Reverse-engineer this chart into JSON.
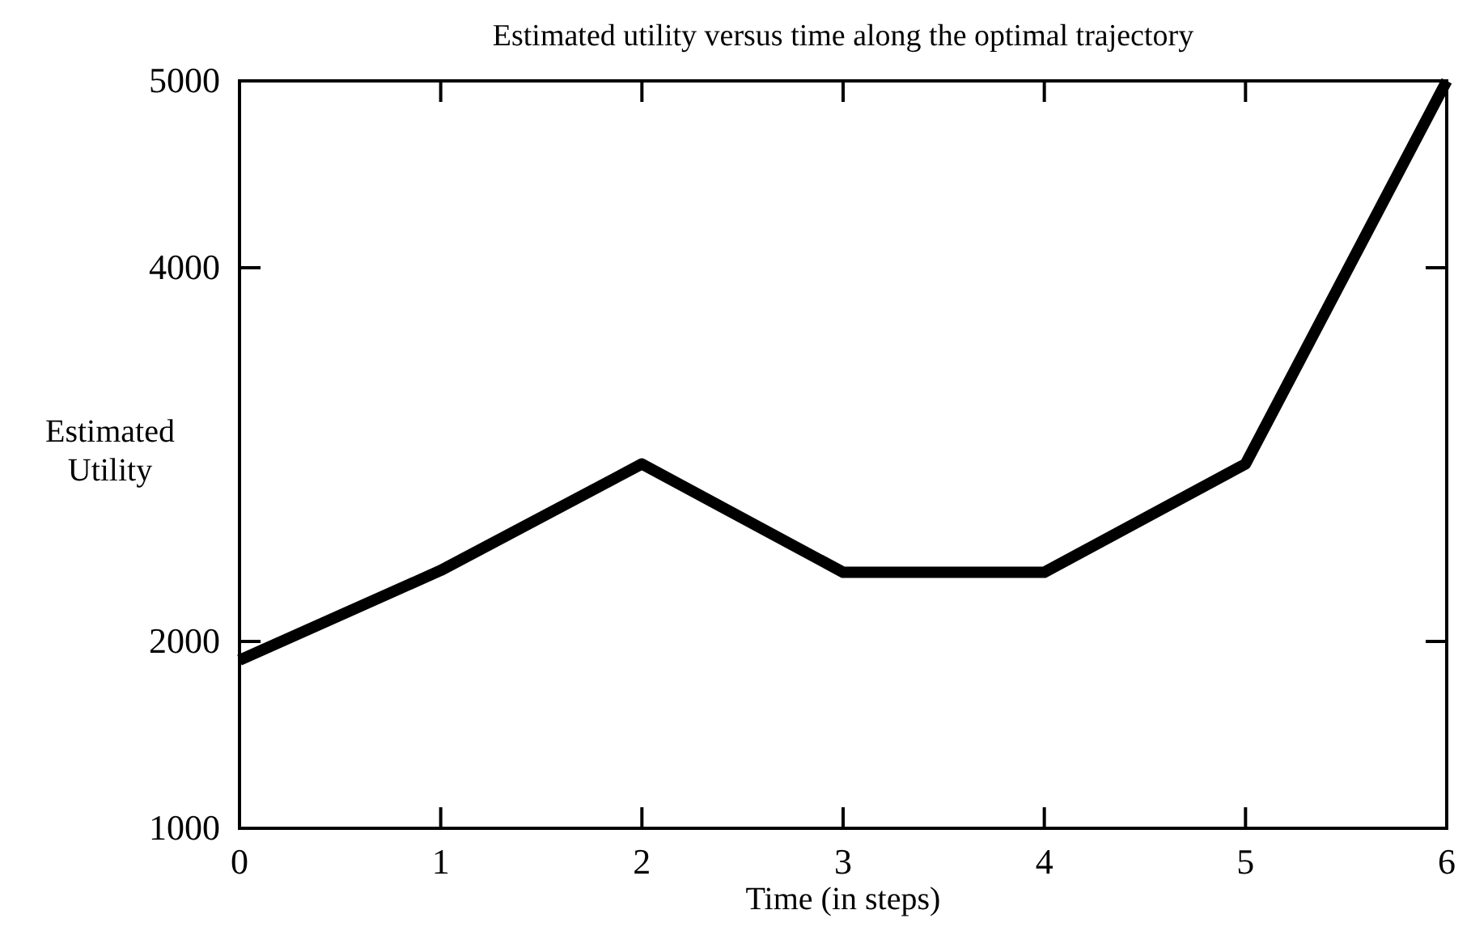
{
  "chart_data": {
    "type": "line",
    "title": "Estimated utility versus time along the optimal trajectory",
    "xlabel": "Time (in steps)",
    "ylabel": "Estimated Utility",
    "x": [
      0,
      1,
      2,
      3,
      4,
      5,
      6
    ],
    "series": [
      {
        "color": "#000000",
        "values": [
          1900,
          2380,
          2950,
          2370,
          2370,
          2950,
          5000
        ]
      }
    ],
    "xlim": [
      0,
      6
    ],
    "xticks": [
      0,
      1,
      2,
      3,
      4,
      5,
      6
    ],
    "ylim": [
      1000,
      5000
    ],
    "yticks": [
      1000,
      2000,
      4000,
      5000
    ],
    "grid": false,
    "marker": "none",
    "line_style": "solid"
  }
}
